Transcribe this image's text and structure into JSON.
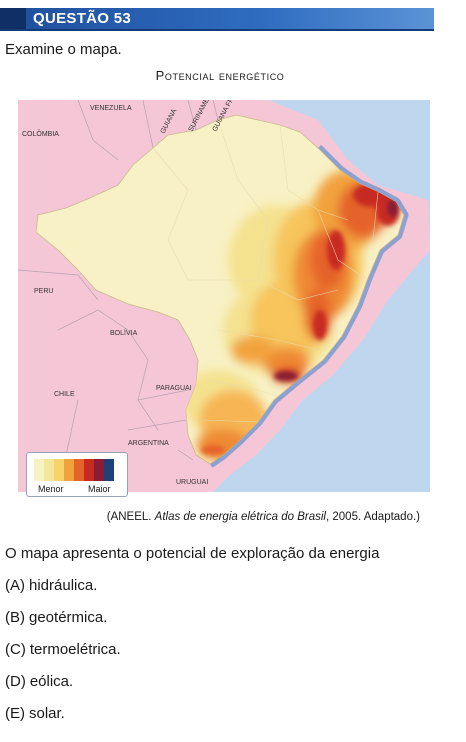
{
  "header": {
    "title": "QUESTÃO 53"
  },
  "prompt": "Examine o mapa.",
  "map": {
    "title": "Potencial energético",
    "country_labels": {
      "venezuela": "VENEZUELA",
      "colombia": "COLÔMBIA",
      "guiana": "GUIANA",
      "suriname": "SURINAME",
      "guiana_francesa": "GUIANA FRANCESA",
      "peru": "PERU",
      "bolivia": "BOLÍVIA",
      "chile": "CHILE",
      "paraguai": "PARAGUAI",
      "argentina": "ARGENTINA",
      "uruguai": "URUGUAI"
    },
    "legend": {
      "min_label": "Menor",
      "max_label": "Maior",
      "colors": [
        "#f7f2c4",
        "#f4e79a",
        "#f7d36a",
        "#f2a23c",
        "#e5642a",
        "#c72a21",
        "#8a1c35",
        "#1f3f78"
      ]
    }
  },
  "source": {
    "prefix": "(ANEEL. ",
    "title": "Atlas de energia elétrica do Brasil",
    "suffix": ", 2005. Adaptado.)"
  },
  "question": "O mapa apresenta o potencial de exploração da energia",
  "options": [
    {
      "letter": "(A)",
      "text": "hidráulica."
    },
    {
      "letter": "(B)",
      "text": "geotérmica."
    },
    {
      "letter": "(C)",
      "text": "termoelétrica."
    },
    {
      "letter": "(D)",
      "text": "eólica."
    },
    {
      "letter": "(E)",
      "text": "solar."
    }
  ]
}
